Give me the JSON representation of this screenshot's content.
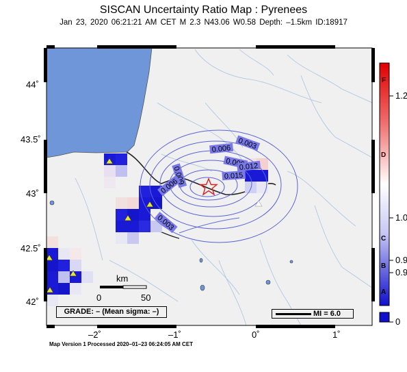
{
  "title": "SISCAN Uncertainty Ratio Map : Pyrenees",
  "subtitle": "Jan 23, 2020 06:21:21 AM CET   M 2.3   N43.06 W0.58   Depth: –1.5km   ID:18917",
  "footer": "Map Version 1 Processed 2020–01–23 06:24:05 AM CET",
  "axes": {
    "lat_labels": [
      "44˚",
      "43.5˚",
      "43˚",
      "42.5˚",
      "42˚"
    ],
    "lon_labels": [
      "–2˚",
      "–1˚",
      "0˚",
      "1˚"
    ]
  },
  "contour_labels": [
    "0.003",
    "0.006",
    "0.009",
    "0.012",
    "0.015",
    "0.009",
    "0.006",
    "0.003"
  ],
  "scale_bar": {
    "unit": "km",
    "min_label": "0",
    "max_label": "50"
  },
  "grade_text": "GRADE: – (Mean sigma: –)",
  "mi_text": "MI = 6.0",
  "colorbar": {
    "letters": [
      "F",
      "D",
      "C",
      "B",
      "A"
    ],
    "values": [
      "1.2",
      "1.0",
      "0.9",
      "0.9",
      "0"
    ]
  },
  "colors": {
    "sea": "#6f96d8",
    "land": "#f0f0f0",
    "contour": "#5a62d8",
    "epicenter": "#e02020",
    "station": "#e8e83a"
  },
  "map_symbols": {
    "epicenter": "star-icon",
    "stations": [
      "triangle-icon",
      "triangle-icon",
      "triangle-icon",
      "triangle-icon",
      "triangle-icon",
      "triangle-icon"
    ]
  }
}
